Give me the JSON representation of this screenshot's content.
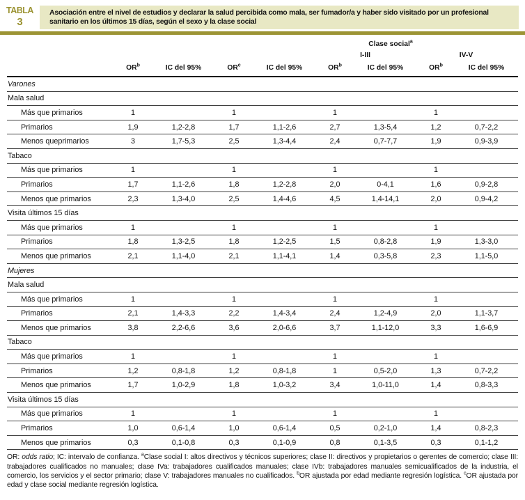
{
  "colors": {
    "olive": "#9c9434",
    "band": "#e8e8c4",
    "text": "#141414"
  },
  "badge": {
    "label": "TABLA",
    "number": "3"
  },
  "title": "Asociación entre el nivel de estudios y declarar la salud percibida como mala, ser fumador/a y haber sido visitado por un profesional sanitario en los últimos 15 días, según el sexo y la clase social",
  "table": {
    "spanner": {
      "text": "Clase social",
      "sup": "a"
    },
    "class_groups": [
      "I-III",
      "IV-V"
    ],
    "columns": [
      {
        "text": "OR",
        "sup": "b"
      },
      {
        "text": "IC del 95%",
        "sup": ""
      },
      {
        "text": "OR",
        "sup": "c"
      },
      {
        "text": "IC del 95%",
        "sup": ""
      },
      {
        "text": "OR",
        "sup": "b"
      },
      {
        "text": "IC del 95%",
        "sup": ""
      },
      {
        "text": "OR",
        "sup": "b"
      },
      {
        "text": "IC del 95%",
        "sup": ""
      }
    ],
    "rows": [
      {
        "type": "group",
        "label": "Varones"
      },
      {
        "type": "subheader",
        "label": "Mala salud"
      },
      {
        "type": "data",
        "label": "Más que primarios",
        "values": [
          "1",
          "",
          "1",
          "",
          "1",
          "",
          "1",
          ""
        ]
      },
      {
        "type": "data",
        "label": "Primarios",
        "values": [
          "1,9",
          "1,2-2,8",
          "1,7",
          "1,1-2,6",
          "2,7",
          "1,3-5,4",
          "1,2",
          "0,7-2,2"
        ]
      },
      {
        "type": "data",
        "label": "Menos queprimarios",
        "values": [
          "3",
          "1,7-5,3",
          "2,5",
          "1,3-4,4",
          "2,4",
          "0,7-7,7",
          "1,9",
          "0,9-3,9"
        ]
      },
      {
        "type": "subheader",
        "label": "Tabaco"
      },
      {
        "type": "data",
        "label": "Más que primarios",
        "values": [
          "1",
          "",
          "1",
          "",
          "1",
          "",
          "1",
          ""
        ]
      },
      {
        "type": "data",
        "label": "Primarios",
        "values": [
          "1,7",
          "1,1-2,6",
          "1,8",
          "1,2-2,8",
          "2,0",
          "0-4,1",
          "1,6",
          "0,9-2,8"
        ]
      },
      {
        "type": "data",
        "label": "Menos que primarios",
        "values": [
          "2,3",
          "1,3-4,0",
          "2,5",
          "1,4-4,6",
          "4,5",
          "1,4-14,1",
          "2,0",
          "0,9-4,2"
        ]
      },
      {
        "type": "subheader",
        "label": "Visita últimos 15 días"
      },
      {
        "type": "data",
        "label": "Más que primarios",
        "values": [
          "1",
          "",
          "1",
          "",
          "1",
          "",
          "1",
          ""
        ]
      },
      {
        "type": "data",
        "label": "Primarios",
        "values": [
          "1,8",
          "1,3-2,5",
          "1,8",
          "1,2-2,5",
          "1,5",
          "0,8-2,8",
          "1,9",
          "1,3-3,0"
        ]
      },
      {
        "type": "data",
        "label": "Menos que primarios",
        "values": [
          "2,1",
          "1,1-4,0",
          "2,1",
          "1,1-4,1",
          "1,4",
          "0,3-5,8",
          "2,3",
          "1,1-5,0"
        ]
      },
      {
        "type": "group",
        "label": "Mujeres"
      },
      {
        "type": "subheader",
        "label": "Mala salud"
      },
      {
        "type": "data",
        "label": "Más que primarios",
        "values": [
          "1",
          "",
          "1",
          "",
          "1",
          "",
          "1",
          ""
        ]
      },
      {
        "type": "data",
        "label": "Primarios",
        "values": [
          "2,1",
          "1,4-3,3",
          "2,2",
          "1,4-3,4",
          "2,4",
          "1,2-4,9",
          "2,0",
          "1,1-3,7"
        ]
      },
      {
        "type": "data",
        "label": "Menos que primarios",
        "values": [
          "3,8",
          "2,2-6,6",
          "3,6",
          "2,0-6,6",
          "3,7",
          "1,1-12,0",
          "3,3",
          "1,6-6,9"
        ]
      },
      {
        "type": "subheader",
        "label": "Tabaco"
      },
      {
        "type": "data",
        "label": "Más que primarios",
        "values": [
          "1",
          "",
          "1",
          "",
          "1",
          "",
          "1",
          ""
        ]
      },
      {
        "type": "data",
        "label": "Primarios",
        "values": [
          "1,2",
          "0,8-1,8",
          "1,2",
          "0,8-1,8",
          "1",
          "0,5-2,0",
          "1,3",
          "0,7-2,2"
        ]
      },
      {
        "type": "data",
        "label": "Menos que primarios",
        "values": [
          "1,7",
          "1,0-2,9",
          "1,8",
          "1,0-3,2",
          "3,4",
          "1,0-11,0",
          "1,4",
          "0,8-3,3"
        ]
      },
      {
        "type": "subheader",
        "label": "Visita últimos 15 días"
      },
      {
        "type": "data",
        "label": "Más que primarios",
        "values": [
          "1",
          "",
          "1",
          "",
          "1",
          "",
          "1",
          ""
        ]
      },
      {
        "type": "data",
        "label": "Primarios",
        "values": [
          "1,0",
          "0,6-1,4",
          "1,0",
          "0,6-1,4",
          "0,5",
          "0,2-1,0",
          "1,4",
          "0,8-2,3"
        ]
      },
      {
        "type": "data",
        "label": "Menos que primarios",
        "values": [
          "0,3",
          "0,1-0,8",
          "0,3",
          "0,1-0,9",
          "0,8",
          "0,1-3,5",
          "0,3",
          "0,1-1,2"
        ]
      }
    ]
  },
  "footnote": {
    "segments": [
      {
        "t": "OR: "
      },
      {
        "t": "odds ratio",
        "i": true
      },
      {
        "t": "; IC: intervalo de confianza. "
      },
      {
        "t": "a",
        "sup": true
      },
      {
        "t": "Clase social I: altos directivos y técnicos superiores; clase II: directivos y propietarios o gerentes de comercio; clase III: trabajadores cualificados no manuales; clase IVa: trabajadores cualificados manuales; clase IVb: trabajadores manuales semicualificados de la industria, el comercio, los servicios y el sector primario; clase V: trabajadores manuales no cualificados. "
      },
      {
        "t": "b",
        "sup": true
      },
      {
        "t": "OR ajustada por edad mediante regresión logística. "
      },
      {
        "t": "c",
        "sup": true
      },
      {
        "t": "OR ajustada por edad y clase social mediante regresión logística."
      }
    ]
  }
}
